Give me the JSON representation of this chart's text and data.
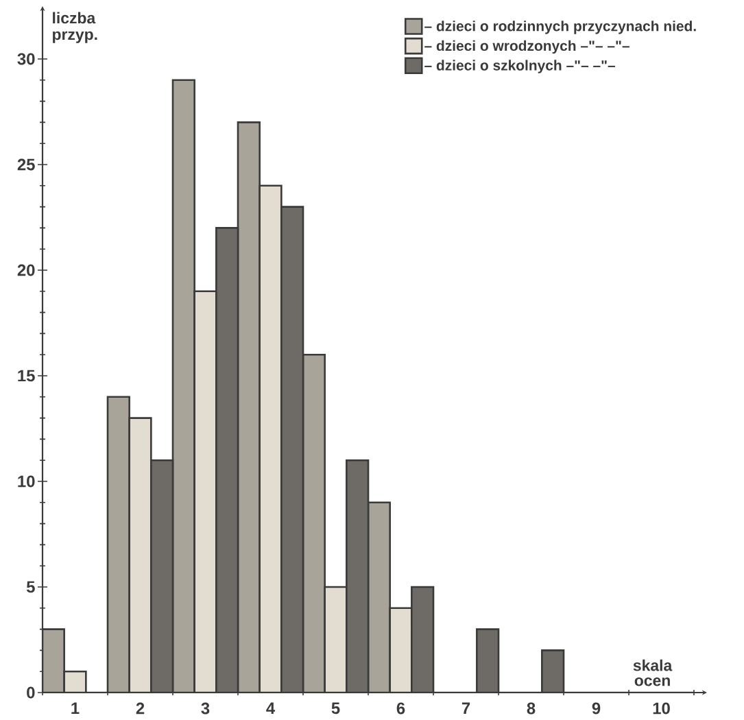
{
  "chart_data": {
    "type": "bar",
    "xlabel": "skala ocen",
    "ylabel": "liczba przyp.",
    "categories": [
      "1",
      "2",
      "3",
      "4",
      "5",
      "6",
      "7",
      "8",
      "9",
      "10"
    ],
    "series": [
      {
        "name": "– dzieci o rodzinnych przyczynach nied.",
        "color": "#a8a49a",
        "values": [
          3,
          14,
          29,
          27,
          16,
          9,
          0,
          0,
          0,
          0
        ]
      },
      {
        "name": "– dzieci o wrodzonych –\"– –\"–",
        "color": "#e2ddd0",
        "values": [
          1,
          13,
          19,
          24,
          5,
          4,
          0,
          0,
          0,
          0
        ]
      },
      {
        "name": "– dzieci o szkolnych –\"– –\"–",
        "color": "#6e6b66",
        "values": [
          0,
          11,
          22,
          23,
          11,
          5,
          3,
          2,
          0,
          0
        ]
      }
    ],
    "ylim": [
      0,
      32.5
    ],
    "yticks": [
      0,
      5,
      10,
      15,
      20,
      25,
      30
    ],
    "legend": "top right"
  }
}
